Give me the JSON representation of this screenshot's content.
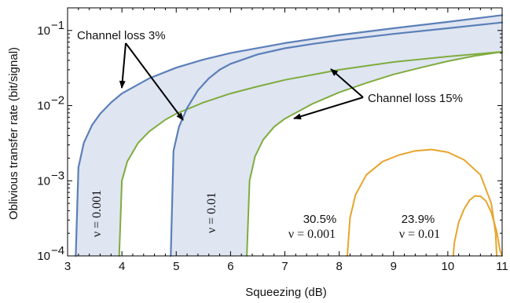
{
  "chart_data": {
    "type": "line",
    "title": "",
    "xlabel": "Squeezing (dB)",
    "ylabel": "Oblivious transfer rate (bit/signal)",
    "xlim": [
      3,
      11
    ],
    "ylim": [
      0.0001,
      0.2
    ],
    "y_scale": "log",
    "x_ticks": [
      "3",
      "4",
      "5",
      "6",
      "7",
      "8",
      "9",
      "10",
      "11"
    ],
    "y_ticks": [
      {
        "value": 0.1,
        "base": "10",
        "exp": "−1"
      },
      {
        "value": 0.01,
        "base": "10",
        "exp": "−2"
      },
      {
        "value": 0.001,
        "base": "10",
        "exp": "−3"
      },
      {
        "value": 0.0001,
        "base": "10",
        "exp": "−4"
      }
    ],
    "colors": {
      "loss3": "#5b7fb8",
      "loss15": "#7fac3e",
      "band_fill": "#dfe5f1",
      "loss_high": "#e7a52c"
    },
    "series": [
      {
        "x": [
          3.15,
          3.2,
          3.3,
          3.45,
          3.6,
          3.8,
          4.0,
          4.5,
          5.0,
          5.5,
          6.0,
          7.0,
          8.0,
          9.0,
          10.0,
          11.0
        ],
        "y": [
          0.0001,
          0.0015,
          0.0032,
          0.0055,
          0.0078,
          0.011,
          0.0145,
          0.023,
          0.032,
          0.041,
          0.05,
          0.068,
          0.087,
          0.107,
          0.13,
          0.16
        ]
      },
      {
        "x": [
          3.95,
          4.0,
          4.1,
          4.3,
          4.5,
          4.8,
          5.0,
          5.5,
          6.0,
          6.5,
          7.0,
          8.0,
          9.0,
          10.0,
          11.0
        ],
        "y": [
          0.0001,
          0.001,
          0.0018,
          0.0032,
          0.0045,
          0.0065,
          0.0078,
          0.011,
          0.0145,
          0.018,
          0.022,
          0.03,
          0.038,
          0.045,
          0.052
        ]
      },
      {
        "x": [
          4.9,
          4.95,
          5.05,
          5.2,
          5.4,
          5.6,
          5.8,
          6.0,
          6.5,
          7.0,
          7.5,
          8.0,
          9.0,
          10.0,
          11.0
        ],
        "y": [
          0.0001,
          0.0025,
          0.0052,
          0.0093,
          0.016,
          0.023,
          0.03,
          0.036,
          0.048,
          0.058,
          0.066,
          0.074,
          0.09,
          0.107,
          0.128
        ]
      },
      {
        "x": [
          6.3,
          6.35,
          6.45,
          6.6,
          6.8,
          7.0,
          7.2,
          7.5,
          8.0,
          8.5,
          9.0,
          9.5,
          10.0,
          10.5,
          11.0
        ],
        "y": [
          0.0001,
          0.001,
          0.0021,
          0.0035,
          0.0052,
          0.0067,
          0.008,
          0.0105,
          0.015,
          0.02,
          0.026,
          0.032,
          0.039,
          0.046,
          0.052
        ]
      },
      {
        "x": [
          8.15,
          8.2,
          8.3,
          8.5,
          8.8,
          9.1,
          9.4,
          9.7,
          10.0,
          10.3,
          10.6,
          10.8,
          10.88,
          10.9
        ],
        "y": [
          0.0001,
          0.00032,
          0.00065,
          0.0012,
          0.0018,
          0.0022,
          0.0025,
          0.0026,
          0.0024,
          0.0019,
          0.0012,
          0.0005,
          0.0002,
          0.0001
        ]
      },
      {
        "x": [
          10.1,
          10.12,
          10.2,
          10.3,
          10.4,
          10.5,
          10.6,
          10.7,
          10.8,
          10.9,
          10.96,
          11.0
        ],
        "y": [
          0.0001,
          0.00015,
          0.00028,
          0.00042,
          0.00055,
          0.00063,
          0.00062,
          0.00054,
          0.00038,
          0.00021,
          0.00012,
          0.0001
        ]
      }
    ],
    "annotations": {
      "loss3_label": "Channel loss 3%",
      "loss15_label": "Channel loss 15%",
      "nu_left": "ν = 0.001",
      "nu_mid": "ν = 0.01",
      "orange_left_pct": "30.5%",
      "orange_left_nu": "ν = 0.001",
      "orange_right_pct": "23.9%",
      "orange_right_nu": "ν = 0.01"
    }
  }
}
